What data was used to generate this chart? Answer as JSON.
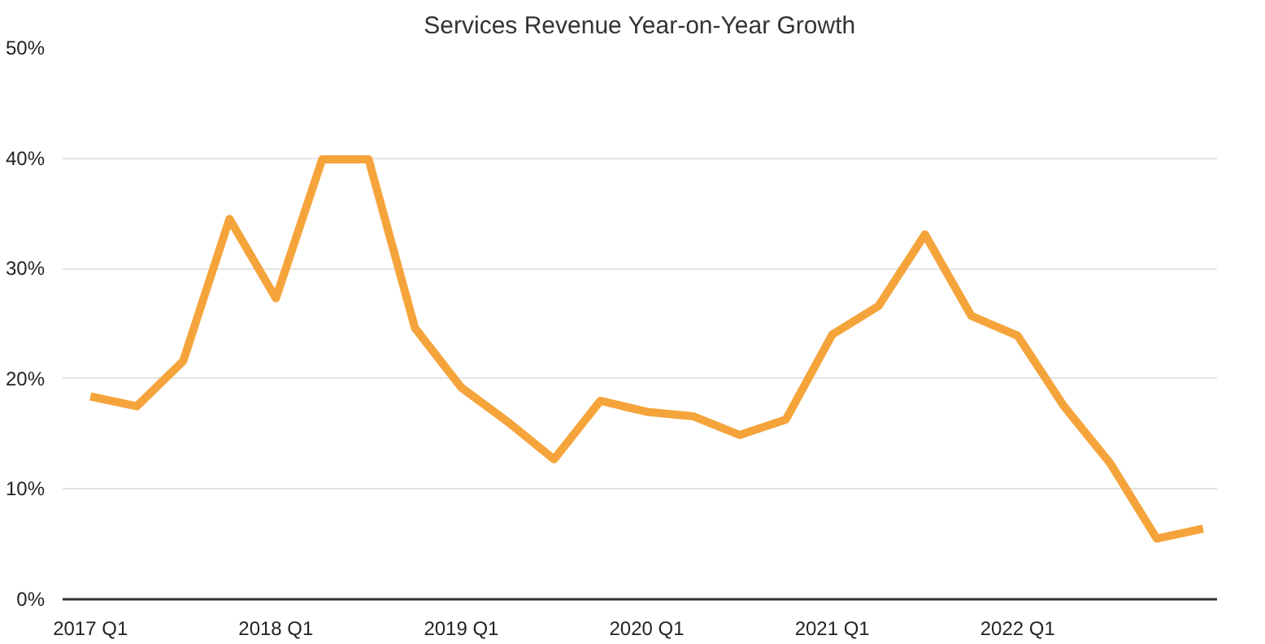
{
  "chart_data": {
    "type": "line",
    "title": "Services Revenue Year-on-Year Growth",
    "categories": [
      "2017 Q1",
      null,
      null,
      null,
      "2018 Q1",
      null,
      null,
      null,
      "2019 Q1",
      null,
      null,
      null,
      "2020 Q1",
      null,
      null,
      null,
      "2021 Q1",
      null,
      null,
      null,
      "2022 Q1",
      null,
      null,
      null,
      null
    ],
    "series": [
      {
        "color": "#f5a43b",
        "values": [
          18.4,
          17.5,
          21.6,
          34.5,
          27.3,
          39.9,
          39.9,
          24.6,
          19.2,
          16.1,
          12.7,
          18.0,
          17.0,
          16.6,
          14.9,
          16.3,
          24.0,
          26.6,
          33.1,
          25.7,
          23.9,
          17.5,
          12.3,
          5.5,
          6.4
        ]
      }
    ],
    "ylim": [
      0,
      50
    ],
    "yticks": [
      {
        "value": 0,
        "label": "0%"
      },
      {
        "value": 10,
        "label": "10%"
      },
      {
        "value": 20,
        "label": "20%"
      },
      {
        "value": 30,
        "label": "30%"
      },
      {
        "value": 40,
        "label": "40%"
      },
      {
        "value": 50,
        "label": "50%"
      }
    ],
    "grid": "y",
    "marker": "none",
    "line_style": "solid"
  }
}
